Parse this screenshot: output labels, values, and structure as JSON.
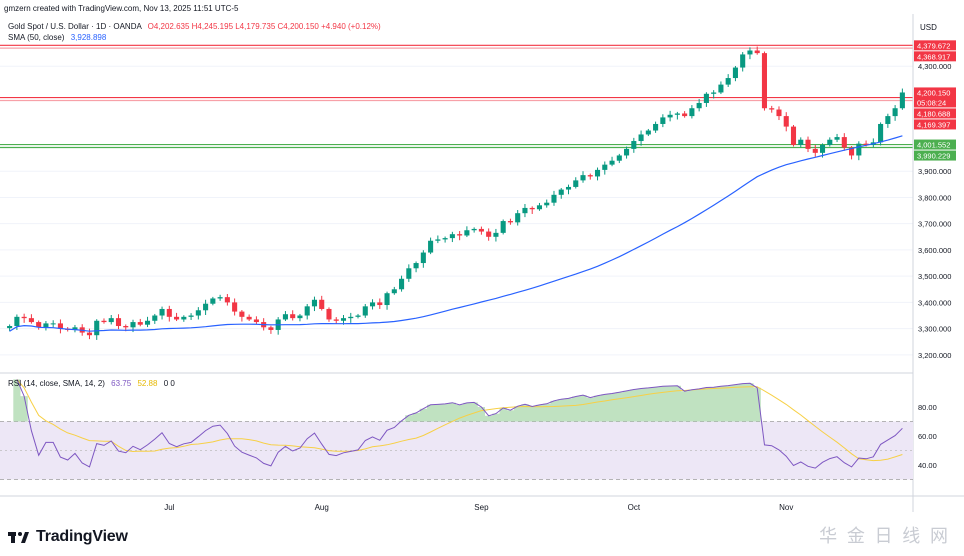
{
  "header": {
    "created_by": "gmzern created with TradingView.com, Nov 13, 2025 11:51 UTC-5",
    "symbol": "Gold Spot / U.S. Dollar · 1D · OANDA",
    "ohlc": "O4,202.635 H4,245.195 L4,179.735 C4,200.150 +4.940 (+0.12%)",
    "sma_label": "SMA (50, close)",
    "sma_value": "3,928.898"
  },
  "currency_label": "USD",
  "price_axis": {
    "ticks": [
      {
        "value": 4300000,
        "label": "4,300.000"
      },
      {
        "value": 3900000,
        "label": "3,900.000"
      },
      {
        "value": 3800000,
        "label": "3,800.000"
      },
      {
        "value": 3700000,
        "label": "3,700.000"
      },
      {
        "value": 3600000,
        "label": "3,600.000"
      },
      {
        "value": 3500000,
        "label": "3,500.000"
      },
      {
        "value": 3400000,
        "label": "3,400.000"
      },
      {
        "value": 3300000,
        "label": "3,300.000"
      },
      {
        "value": 3200000,
        "label": "3,200.000"
      }
    ],
    "badges": [
      {
        "value": 4379672,
        "label": "4,379.672",
        "color": "#f23645"
      },
      {
        "value": 4368917,
        "label": "4,368.917",
        "color": "#f23645"
      },
      {
        "value": 4200150,
        "label": "4,200.150",
        "color": "#f23645",
        "sub": "05:08:24"
      },
      {
        "value": 4180688,
        "label": "4,180.688",
        "color": "#f23645"
      },
      {
        "value": 4169397,
        "label": "4,169.397",
        "color": "#f23645"
      },
      {
        "value": 4001552,
        "label": "4,001.552",
        "color": "#4caf50"
      },
      {
        "value": 3990229,
        "label": "3,990.229",
        "color": "#4caf50"
      }
    ]
  },
  "horizontal_lines": [
    {
      "value": 4379672,
      "color": "#f23645"
    },
    {
      "value": 4368917,
      "color": "#f7a1a8"
    },
    {
      "value": 4180688,
      "color": "#f23645"
    },
    {
      "value": 4169397,
      "color": "#f7a1a8"
    },
    {
      "value": 4001552,
      "color": "#4caf50"
    },
    {
      "value": 3990229,
      "color": "#4caf50"
    }
  ],
  "rsi": {
    "label": "RSI (14, close, SMA, 14, 2)",
    "value": "63.75",
    "sma_value": "52.88",
    "extra": "0  0",
    "ticks": [
      {
        "value": 80,
        "label": "80.00"
      },
      {
        "value": 60,
        "label": "60.00"
      },
      {
        "value": 40,
        "label": "40.00"
      }
    ]
  },
  "time_axis": [
    "Jul",
    "Aug",
    "Sep",
    "Oct",
    "Nov"
  ],
  "colors": {
    "up": "#089981",
    "down": "#f23645",
    "sma": "#2962ff",
    "rsi": "#7e57c2",
    "rsi_sma": "#f7d046",
    "rsi_band": "#ede7f6"
  },
  "footer": {
    "logo_text": "TradingView",
    "watermark": "华 金 日 线 网"
  },
  "chart_data": {
    "type": "candlestick",
    "title": "Gold Spot / U.S. Dollar · 1D · OANDA",
    "xlabels": [
      "Jul",
      "Aug",
      "Sep",
      "Oct",
      "Nov"
    ],
    "series": [
      {
        "name": "SMA (50, close)",
        "last": 3928.898
      },
      {
        "name": "RSI (14, close)",
        "last": 63.75
      },
      {
        "name": "RSI SMA",
        "last": 52.88
      }
    ],
    "last_close": 4200.15,
    "ohlc_last": {
      "open": 4202.635,
      "high": 4245.195,
      "low": 4179.735,
      "close": 4200.15
    },
    "closes": [
      3310,
      3345,
      3340,
      3325,
      3305,
      3320,
      3320,
      3300,
      3295,
      3305,
      3285,
      3275,
      3330,
      3325,
      3340,
      3310,
      3305,
      3325,
      3315,
      3330,
      3350,
      3375,
      3345,
      3335,
      3345,
      3350,
      3370,
      3395,
      3415,
      3420,
      3400,
      3365,
      3345,
      3335,
      3325,
      3305,
      3295,
      3335,
      3355,
      3340,
      3350,
      3385,
      3410,
      3375,
      3335,
      3330,
      3340,
      3345,
      3350,
      3385,
      3400,
      3390,
      3435,
      3450,
      3490,
      3530,
      3550,
      3590,
      3635,
      3640,
      3645,
      3660,
      3655,
      3675,
      3680,
      3670,
      3650,
      3665,
      3710,
      3705,
      3740,
      3760,
      3755,
      3770,
      3780,
      3810,
      3830,
      3840,
      3865,
      3885,
      3880,
      3905,
      3925,
      3940,
      3960,
      3985,
      4015,
      4040,
      4055,
      4080,
      4105,
      4115,
      4120,
      4110,
      4140,
      4160,
      4195,
      4200,
      4230,
      4255,
      4295,
      4345,
      4360,
      4350,
      4140,
      4135,
      4110,
      4070,
      4000,
      4020,
      3985,
      3970,
      4000,
      4020,
      4030,
      3990,
      3960,
      4005,
      4000,
      4010,
      4080,
      4110,
      4140,
      4200
    ],
    "ylim_price": [
      3150,
      4400
    ],
    "rsi_ylim": [
      20,
      100
    ]
  }
}
